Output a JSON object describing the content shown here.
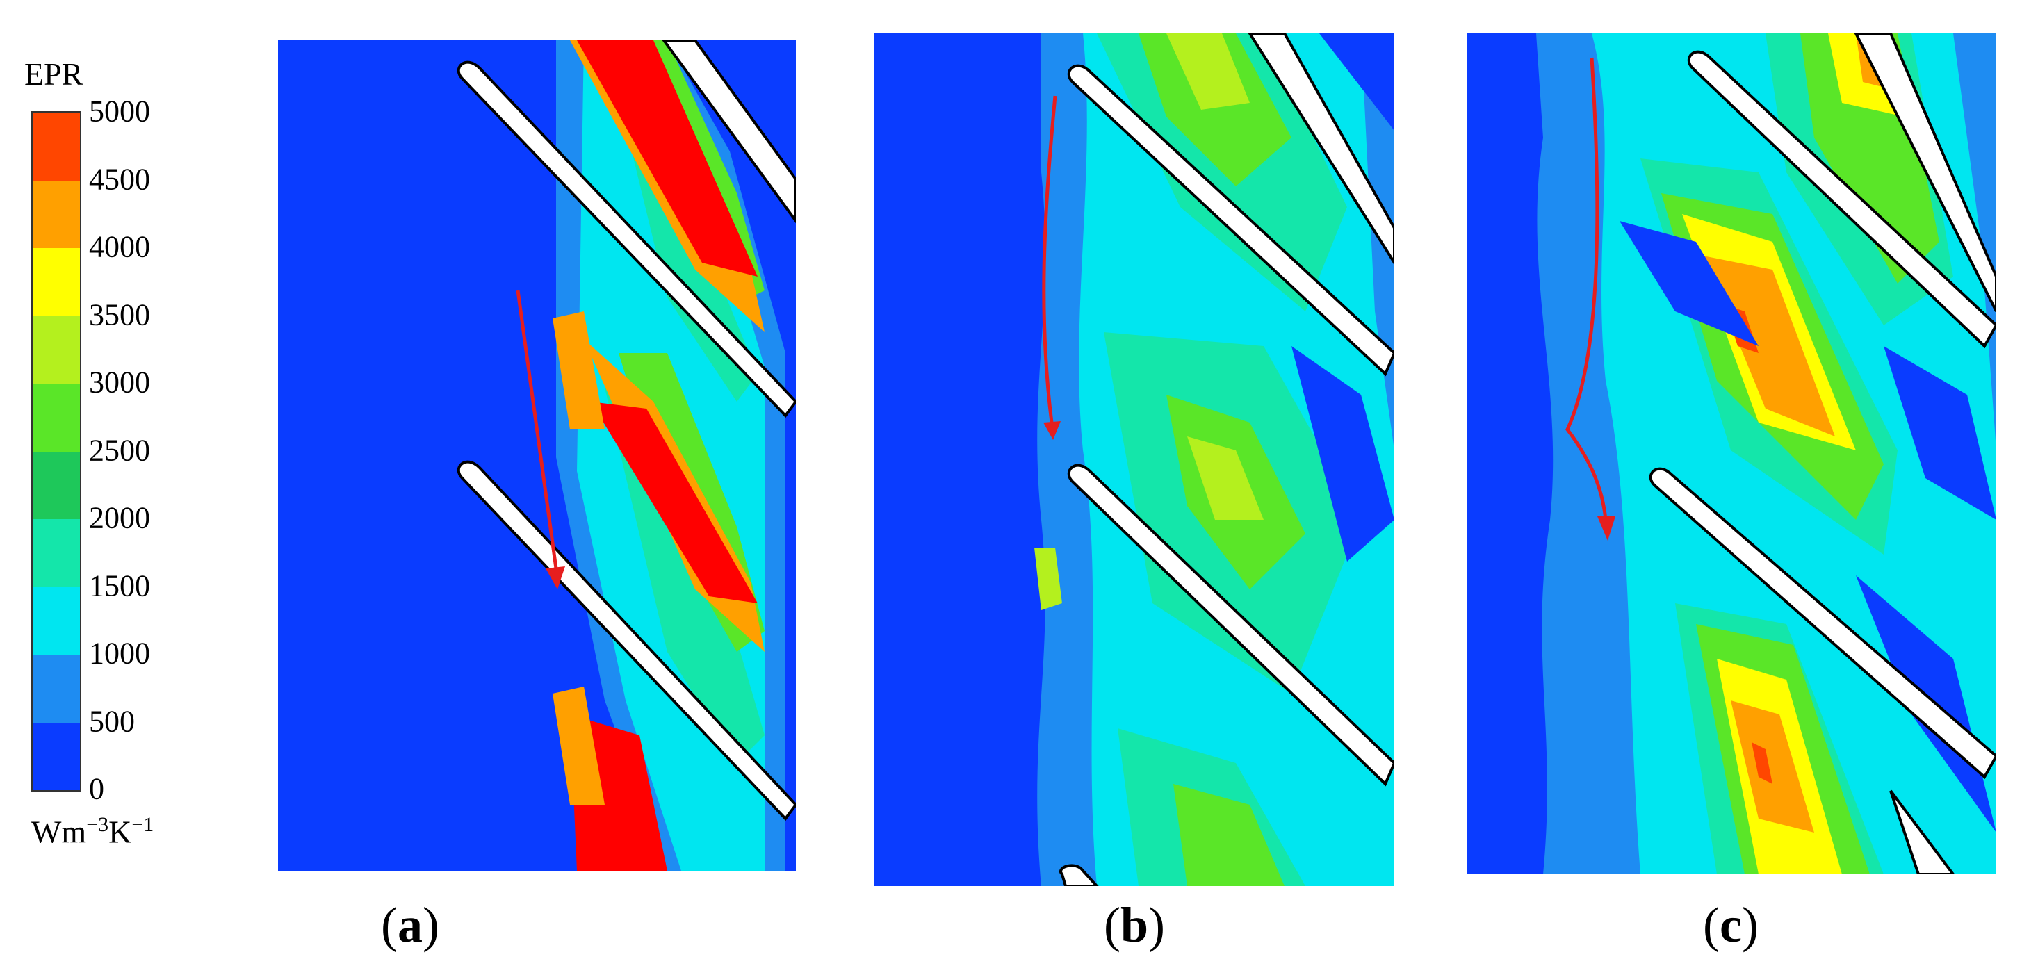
{
  "colorbar": {
    "title": "EPR",
    "unit": "Wm",
    "unit_sup1": "−3",
    "unit_mid": "K",
    "unit_sup2": "−1",
    "ticks": [
      "0",
      "500",
      "1000",
      "1500",
      "2000",
      "2500",
      "3000",
      "3500",
      "4000",
      "4500",
      "5000"
    ],
    "colors": [
      "#0a3cff",
      "#1e8cf2",
      "#00e6f0",
      "#14e6aa",
      "#1ec85a",
      "#5ae628",
      "#b4f01e",
      "#ffff00",
      "#ffa000",
      "#ff4600"
    ]
  },
  "panels": [
    {
      "label": "a"
    },
    {
      "label": "b"
    },
    {
      "label": "c"
    }
  ]
}
